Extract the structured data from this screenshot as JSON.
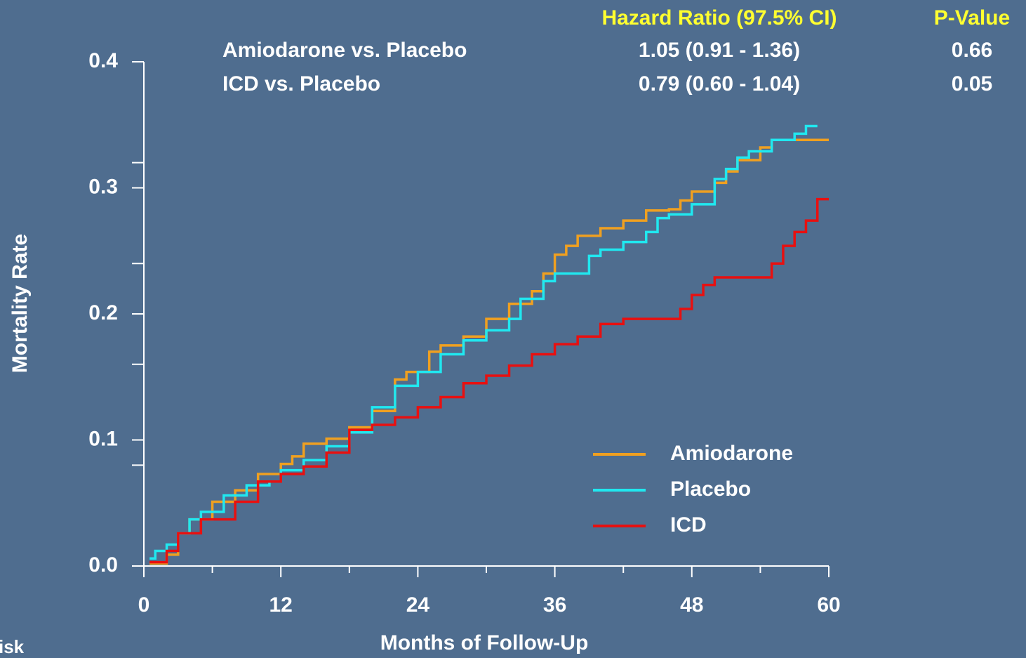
{
  "chart_data": {
    "type": "step",
    "ylabel": "Mortality Rate",
    "xlabel": "Months of Follow-Up",
    "corner_text": "isk",
    "table": {
      "headers": [
        "Hazard Ratio (97.5% CI)",
        "P-Value"
      ],
      "rows": [
        [
          "Amiodarone vs. Placebo",
          "1.05 (0.91 - 1.36)",
          "0.66"
        ],
        [
          "ICD vs. Placebo",
          "0.79 (0.60 - 1.04)",
          "0.05"
        ]
      ]
    },
    "xlim": [
      0,
      60
    ],
    "xticks": [
      0,
      12,
      24,
      36,
      48,
      60
    ],
    "xminorticks": [
      6,
      18,
      30,
      42,
      54
    ],
    "ylim": [
      0,
      0.4
    ],
    "yticks": [
      {
        "value": 0,
        "label": "0.0"
      },
      0.1,
      0.2,
      0.3,
      0.4
    ],
    "yminorticks": [
      0.08,
      0.16,
      0.24,
      0.32
    ],
    "legend": "lower right",
    "series": [
      {
        "name": "Amiodarone",
        "color": "#f0a020",
        "x": [
          0.5,
          2,
          3,
          4,
          6,
          8,
          10,
          12,
          13,
          14,
          16,
          18,
          20,
          22,
          23,
          25,
          26,
          28,
          30,
          32,
          34,
          35,
          36,
          37,
          38,
          40,
          42,
          44,
          46,
          47,
          48,
          50,
          51,
          52,
          54,
          55,
          58,
          60
        ],
        "values": [
          0.002,
          0.009,
          0.026,
          0.037,
          0.051,
          0.06,
          0.073,
          0.081,
          0.087,
          0.097,
          0.101,
          0.11,
          0.123,
          0.148,
          0.154,
          0.17,
          0.175,
          0.182,
          0.196,
          0.208,
          0.218,
          0.232,
          0.247,
          0.254,
          0.262,
          0.268,
          0.274,
          0.282,
          0.283,
          0.29,
          0.297,
          0.304,
          0.313,
          0.322,
          0.332,
          0.338,
          0.338,
          0.338
        ]
      },
      {
        "name": "Placebo",
        "color": "#20e8f0",
        "x": [
          0.5,
          1,
          2,
          3,
          4,
          5,
          7,
          9,
          11,
          12,
          14,
          16,
          18,
          20,
          22,
          24,
          26,
          28,
          30,
          32,
          33,
          35,
          36,
          38,
          39,
          40,
          42,
          44,
          45,
          46,
          48,
          49,
          50,
          51,
          52,
          53,
          55,
          57,
          58,
          59
        ],
        "values": [
          0.006,
          0.012,
          0.017,
          0.026,
          0.037,
          0.043,
          0.056,
          0.064,
          0.067,
          0.076,
          0.084,
          0.095,
          0.106,
          0.126,
          0.143,
          0.154,
          0.168,
          0.179,
          0.187,
          0.196,
          0.212,
          0.226,
          0.232,
          0.232,
          0.246,
          0.251,
          0.257,
          0.265,
          0.276,
          0.279,
          0.287,
          0.287,
          0.307,
          0.315,
          0.324,
          0.329,
          0.338,
          0.343,
          0.349,
          0.349
        ]
      },
      {
        "name": "ICD",
        "color": "#e81010",
        "x": [
          0.5,
          2,
          3,
          5,
          8,
          10,
          12,
          14,
          16,
          18,
          20,
          22,
          24,
          26,
          28,
          30,
          32,
          34,
          36,
          38,
          40,
          42,
          45,
          47,
          48,
          49,
          50,
          53,
          55,
          56,
          57,
          58,
          59,
          60
        ],
        "values": [
          0.003,
          0.012,
          0.026,
          0.037,
          0.051,
          0.067,
          0.073,
          0.079,
          0.09,
          0.108,
          0.112,
          0.118,
          0.126,
          0.134,
          0.145,
          0.151,
          0.159,
          0.168,
          0.176,
          0.182,
          0.192,
          0.196,
          0.196,
          0.204,
          0.215,
          0.223,
          0.229,
          0.229,
          0.24,
          0.254,
          0.265,
          0.274,
          0.291,
          0.291
        ]
      }
    ]
  }
}
